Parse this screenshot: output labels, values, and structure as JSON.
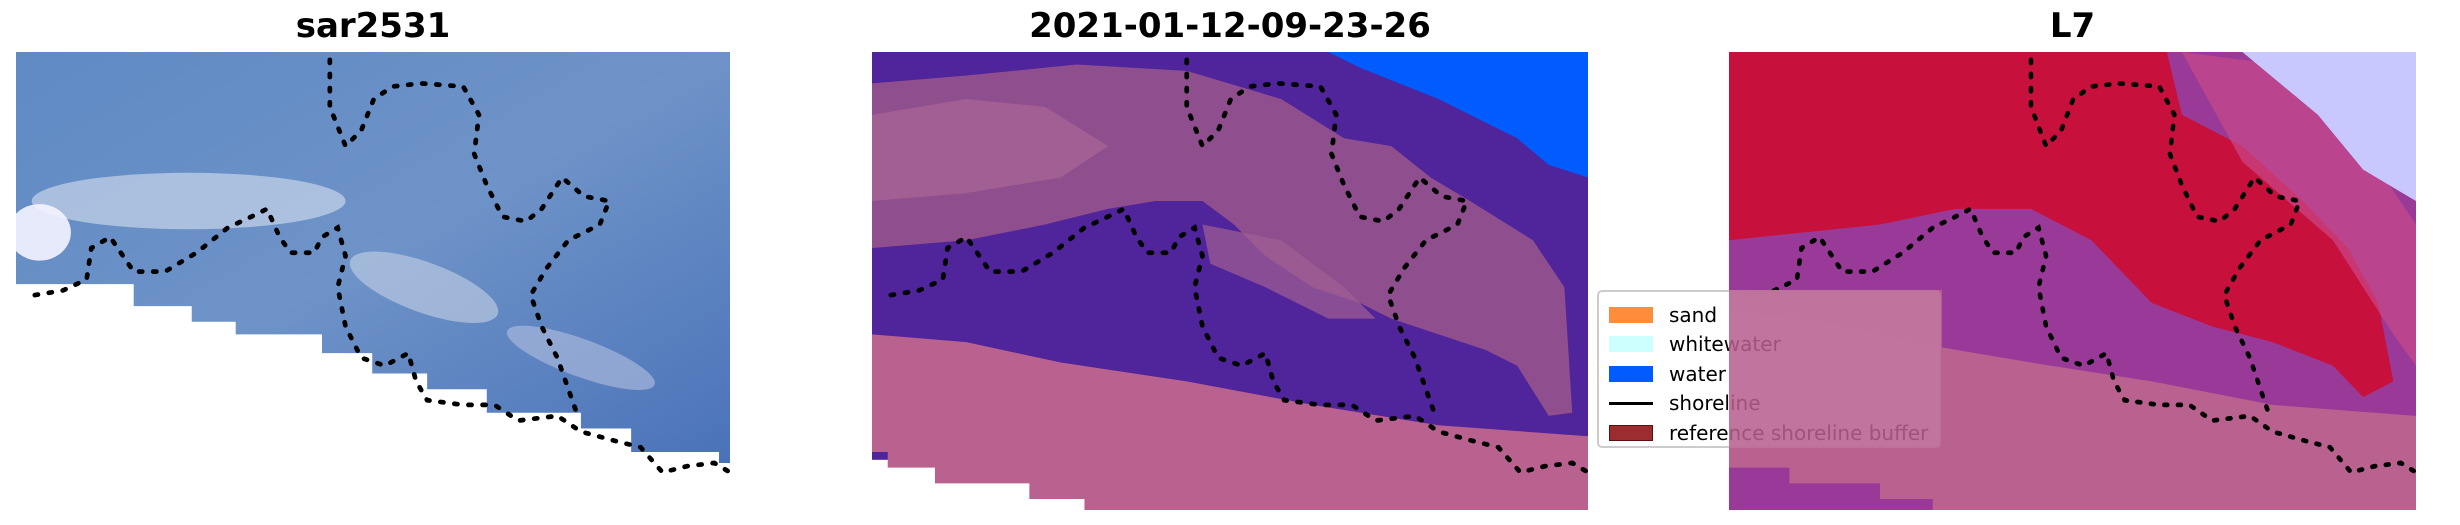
{
  "panels": [
    {
      "title": "sar2531"
    },
    {
      "title": "2021-01-12-09-23-26"
    },
    {
      "title": "L7"
    }
  ],
  "legend": {
    "items": [
      {
        "label": "sand",
        "kind": "patch",
        "color": "#ff8c3a"
      },
      {
        "label": "whitewater",
        "kind": "patch",
        "color": "#ccffff"
      },
      {
        "label": "water",
        "kind": "patch",
        "color": "#005cff"
      },
      {
        "label": "shoreline",
        "kind": "line",
        "color": "#000000"
      },
      {
        "label": "reference shoreline buffer",
        "kind": "patch",
        "color": "#9b2d30"
      }
    ]
  },
  "colors": {
    "sar_water": "#4a78b8",
    "classified_water_dark": "#50249a",
    "classified_land": "#8a4a8c",
    "buffer_overlay": "#b9628f",
    "l7_land": "#c8103c"
  }
}
